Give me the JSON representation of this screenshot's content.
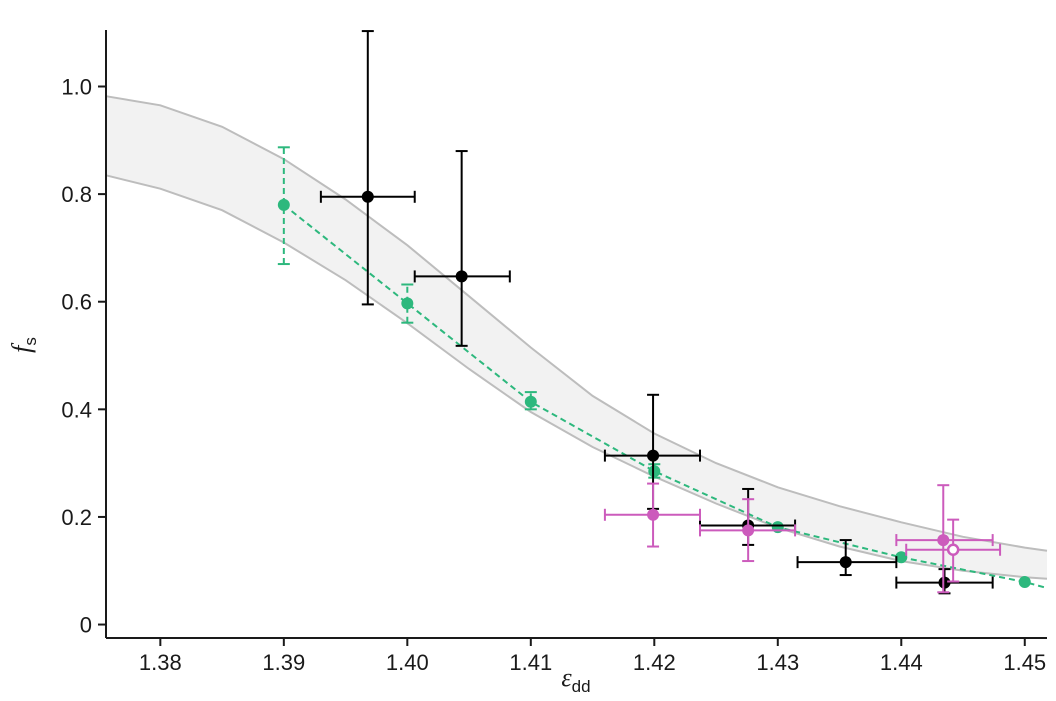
{
  "chart_data": {
    "type": "scatter",
    "title": "",
    "xlabel": "ε",
    "xlabel_sub": "dd",
    "ylabel": "f",
    "ylabel_sub": "s",
    "xlim": [
      1.3756,
      1.4518
    ],
    "ylim": [
      -0.025,
      1.105
    ],
    "xticks": [
      1.38,
      1.39,
      1.4,
      1.41,
      1.42,
      1.43,
      1.44,
      1.45
    ],
    "xtick_labels": [
      "1.38",
      "1.39",
      "1.40",
      "1.41",
      "1.42",
      "1.43",
      "1.44",
      "1.45"
    ],
    "yticks": [
      0,
      0.2,
      0.4,
      0.6,
      0.8,
      1.0
    ],
    "ytick_labels": [
      "0",
      "0.2",
      "0.4",
      "0.6",
      "0.8",
      "1.0"
    ],
    "grid": false,
    "legend": "none",
    "band": {
      "color": "#bdbdbd",
      "fill": "#f2f2f2",
      "x": [
        1.3756,
        1.38,
        1.385,
        1.39,
        1.395,
        1.4,
        1.405,
        1.41,
        1.415,
        1.42,
        1.425,
        1.43,
        1.435,
        1.44,
        1.445,
        1.45,
        1.4518
      ],
      "upper": [
        0.982,
        0.965,
        0.925,
        0.865,
        0.79,
        0.705,
        0.61,
        0.515,
        0.425,
        0.355,
        0.3,
        0.255,
        0.22,
        0.19,
        0.163,
        0.143,
        0.137
      ],
      "lower": [
        0.835,
        0.81,
        0.77,
        0.71,
        0.64,
        0.56,
        0.475,
        0.395,
        0.33,
        0.275,
        0.225,
        0.18,
        0.145,
        0.118,
        0.1,
        0.088,
        0.085
      ]
    },
    "series": [
      {
        "color": "#2db87d",
        "style": "dashed-line-with-markers",
        "points": [
          {
            "x": 1.39,
            "y": 0.78,
            "ylo": 0.67,
            "yhi": 0.887
          },
          {
            "x": 1.4,
            "y": 0.597,
            "ylo": 0.561,
            "yhi": 0.632
          },
          {
            "x": 1.41,
            "y": 0.414,
            "ylo": 0.4,
            "yhi": 0.432
          },
          {
            "x": 1.42,
            "y": 0.285,
            "ylo": 0.273,
            "yhi": 0.298
          },
          {
            "x": 1.43,
            "y": 0.181
          },
          {
            "x": 1.44,
            "y": 0.125
          },
          {
            "x": 1.45,
            "y": 0.079
          },
          {
            "x": 1.4518,
            "y": 0.068
          }
        ]
      },
      {
        "color": "#000000",
        "style": "markers-with-errorbars",
        "points": [
          {
            "x": 1.3968,
            "y": 0.795,
            "ylo": 0.595,
            "yhi": 1.103,
            "xlo": 1.393,
            "xhi": 1.4006
          },
          {
            "x": 1.4044,
            "y": 0.647,
            "ylo": 0.518,
            "yhi": 0.88,
            "xlo": 1.4006,
            "xhi": 1.4083
          },
          {
            "x": 1.4199,
            "y": 0.314,
            "ylo": 0.215,
            "yhi": 0.427,
            "xlo": 1.416,
            "xhi": 1.4237
          },
          {
            "x": 1.4276,
            "y": 0.184,
            "ylo": 0.148,
            "yhi": 0.252,
            "xlo": 1.4237,
            "xhi": 1.4314
          },
          {
            "x": 1.4355,
            "y": 0.116,
            "ylo": 0.092,
            "yhi": 0.157,
            "xlo": 1.4316,
            "xhi": 1.4396
          },
          {
            "x": 1.4435,
            "y": 0.078,
            "ylo": 0.058,
            "yhi": 0.103,
            "xlo": 1.4396,
            "xhi": 1.4474
          }
        ]
      },
      {
        "color": "#cc5bbc",
        "style": "markers-with-errorbars",
        "points": [
          {
            "x": 1.4199,
            "y": 0.204,
            "ylo": 0.145,
            "yhi": 0.262,
            "xlo": 1.416,
            "xhi": 1.4237
          },
          {
            "x": 1.4276,
            "y": 0.175,
            "ylo": 0.118,
            "yhi": 0.233,
            "xlo": 1.4237,
            "xhi": 1.4314
          },
          {
            "x": 1.4434,
            "y": 0.157,
            "ylo": 0.06,
            "yhi": 0.259,
            "xlo": 1.4396,
            "xhi": 1.4474
          },
          {
            "x": 1.4442,
            "y": 0.139,
            "ylo": 0.08,
            "yhi": 0.195,
            "xlo": 1.4404,
            "xhi": 1.448,
            "open": true
          }
        ]
      }
    ]
  }
}
